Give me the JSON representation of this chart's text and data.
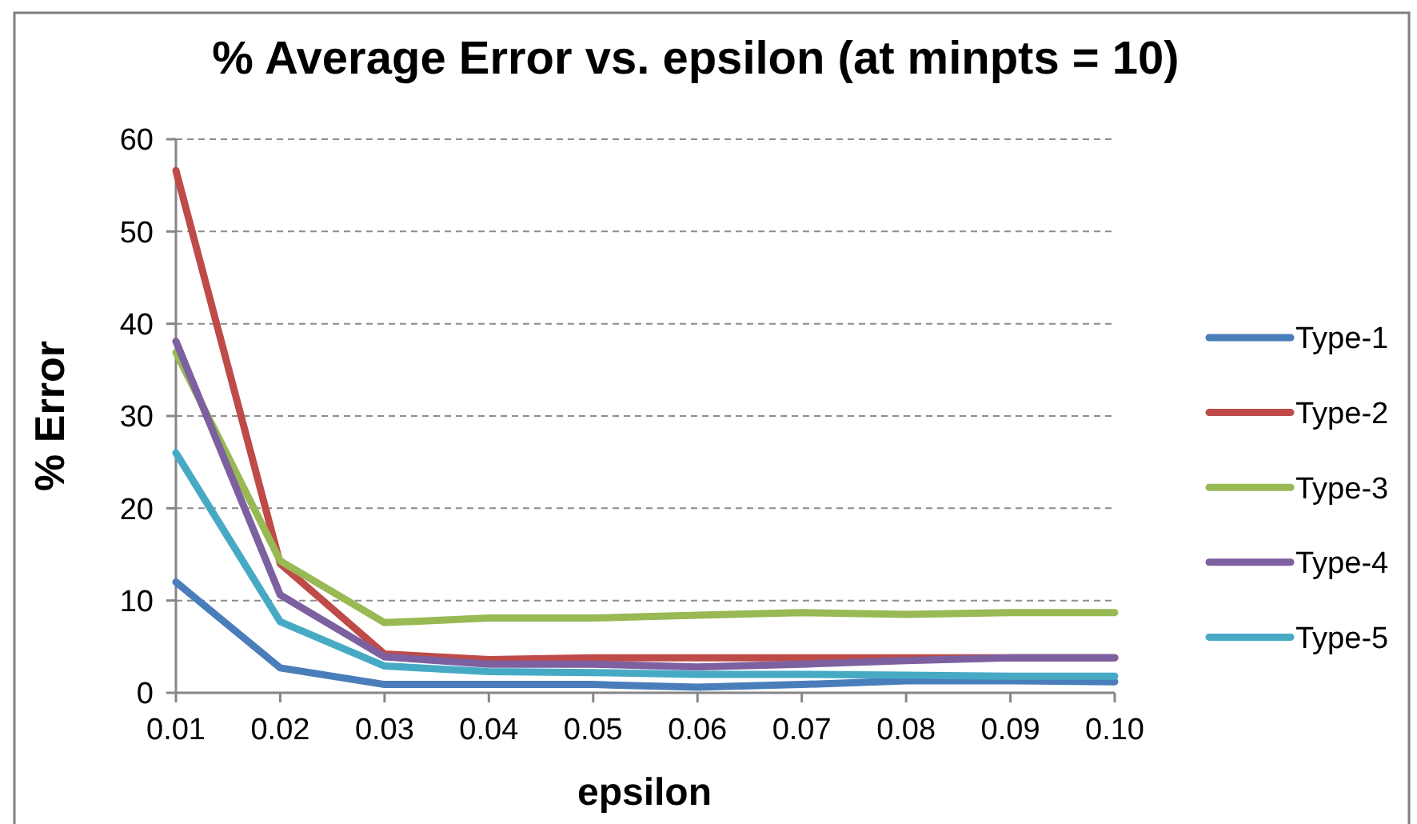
{
  "chart_data": {
    "type": "line",
    "title": "% Average Error vs. epsilon (at minpts = 10)",
    "xlabel": "epsilon",
    "ylabel": "% Error",
    "categories": [
      "0.01",
      "0.02",
      "0.03",
      "0.04",
      "0.05",
      "0.06",
      "0.07",
      "0.08",
      "0.09",
      "0.10"
    ],
    "series": [
      {
        "name": "Type-1",
        "color": "#4a7ebb",
        "values": [
          12.0,
          2.7,
          0.9,
          0.9,
          0.9,
          0.6,
          0.9,
          1.3,
          1.3,
          1.2
        ]
      },
      {
        "name": "Type-2",
        "color": "#be4b48",
        "values": [
          56.6,
          14.0,
          4.2,
          3.6,
          3.8,
          3.8,
          3.8,
          3.8,
          3.8,
          3.8
        ]
      },
      {
        "name": "Type-3",
        "color": "#98b954",
        "values": [
          36.9,
          14.3,
          7.6,
          8.1,
          8.1,
          8.4,
          8.7,
          8.5,
          8.7,
          8.7
        ]
      },
      {
        "name": "Type-4",
        "color": "#7d60a0",
        "values": [
          38.1,
          10.6,
          3.9,
          3.1,
          3.1,
          2.8,
          3.1,
          3.5,
          3.8,
          3.8
        ]
      },
      {
        "name": "Type-5",
        "color": "#46aac5",
        "values": [
          26.0,
          7.7,
          2.9,
          2.3,
          2.2,
          2.0,
          2.0,
          1.9,
          1.8,
          1.8
        ]
      }
    ],
    "ylim": [
      0,
      60
    ],
    "yticks": [
      0,
      10,
      20,
      30,
      40,
      50,
      60
    ],
    "grid": "y",
    "legend": "right",
    "line_style": "solid"
  }
}
